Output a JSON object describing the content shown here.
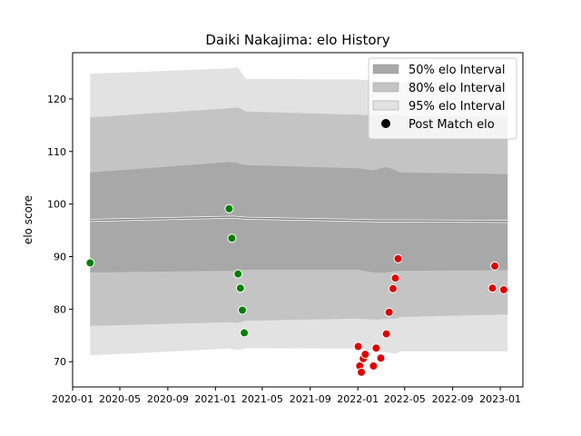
{
  "chart_data": {
    "type": "line",
    "title": "Daiki Nakajima: elo History",
    "xlabel": "",
    "ylabel": "elo score",
    "xlim": [
      "2020-01-01",
      "2023-02-28"
    ],
    "ylim": [
      65.2,
      128.8
    ],
    "x_ticks": [
      {
        "date": "2020-01-01",
        "label": "2020-01"
      },
      {
        "date": "2020-05-01",
        "label": "2020-05"
      },
      {
        "date": "2020-09-01",
        "label": "2020-09"
      },
      {
        "date": "2021-01-01",
        "label": "2021-01"
      },
      {
        "date": "2021-05-01",
        "label": "2021-05"
      },
      {
        "date": "2021-09-01",
        "label": "2021-09"
      },
      {
        "date": "2022-01-01",
        "label": "2022-01"
      },
      {
        "date": "2022-05-01",
        "label": "2022-05"
      },
      {
        "date": "2022-09-01",
        "label": "2022-09"
      },
      {
        "date": "2023-01-01",
        "label": "2023-01"
      }
    ],
    "y_ticks": [
      70,
      80,
      90,
      100,
      110,
      120
    ],
    "legend": {
      "position": "top-right",
      "entries": [
        {
          "label": "50% elo Interval",
          "kind": "band",
          "color": "#a8a8a8"
        },
        {
          "label": "80% elo Interval",
          "kind": "band",
          "color": "#c4c4c4"
        },
        {
          "label": "95% elo Interval",
          "kind": "band",
          "color": "#e2e2e2"
        },
        {
          "label": "Post Match elo",
          "kind": "marker",
          "color": "#000000"
        }
      ]
    },
    "mean_line": {
      "x": [
        "2020-02-15",
        "2021-02-05",
        "2021-02-20",
        "2021-03-20",
        "2022-01-01",
        "2022-02-20",
        "2022-04-10",
        "2022-04-20",
        "2023-01-20"
      ],
      "y": [
        96.9,
        97.5,
        97.5,
        97.3,
        96.9,
        96.8,
        96.8,
        96.8,
        96.7
      ]
    },
    "bands": [
      {
        "name": "95% elo Interval",
        "color": "#e2e2e2",
        "x": [
          "2020-02-15",
          "2021-02-05",
          "2021-02-28",
          "2021-03-20",
          "2022-01-01",
          "2022-02-20",
          "2022-04-10",
          "2022-04-20",
          "2023-01-20"
        ],
        "upper": [
          124.8,
          125.8,
          126.0,
          123.8,
          123.7,
          123.5,
          123.5,
          123.2,
          123.3
        ],
        "lower": [
          71.2,
          72.5,
          72.2,
          72.6,
          72.5,
          72.0,
          71.5,
          72.0,
          72.0
        ]
      },
      {
        "name": "80% elo Interval",
        "color": "#c4c4c4",
        "x": [
          "2020-02-15",
          "2021-02-05",
          "2021-02-28",
          "2021-03-20",
          "2022-01-01",
          "2022-02-20",
          "2022-03-20",
          "2022-04-10",
          "2022-04-20",
          "2023-01-20"
        ],
        "upper": [
          116.5,
          118.2,
          118.4,
          117.6,
          117.0,
          116.9,
          116.9,
          117.0,
          116.8,
          116.5
        ],
        "lower": [
          76.8,
          77.5,
          77.4,
          77.8,
          78.2,
          78.0,
          78.2,
          78.2,
          78.5,
          79.0
        ]
      },
      {
        "name": "50% elo Interval",
        "color": "#a8a8a8",
        "x": [
          "2020-02-15",
          "2021-02-05",
          "2021-02-20",
          "2021-03-20",
          "2022-01-01",
          "2022-02-10",
          "2022-03-10",
          "2022-03-25",
          "2022-04-20",
          "2023-01-20"
        ],
        "upper": [
          106.0,
          108.0,
          107.9,
          107.4,
          106.8,
          106.4,
          107.0,
          106.8,
          106.0,
          105.7
        ],
        "lower": [
          87.0,
          87.3,
          87.3,
          87.5,
          87.5,
          87.0,
          86.9,
          87.1,
          87.3,
          87.4
        ]
      }
    ],
    "series": [
      {
        "name": "Post Match elo",
        "color": "#008000",
        "points": [
          {
            "x": "2020-02-15",
            "y": 88.8
          },
          {
            "x": "2021-02-05",
            "y": 99.1
          },
          {
            "x": "2021-02-12",
            "y": 93.5
          },
          {
            "x": "2021-02-28",
            "y": 86.7
          },
          {
            "x": "2021-03-06",
            "y": 84.0
          },
          {
            "x": "2021-03-11",
            "y": 79.8
          },
          {
            "x": "2021-03-16",
            "y": 75.5
          }
        ]
      },
      {
        "name": "Post Match elo",
        "color": "#e00000",
        "points": [
          {
            "x": "2022-01-02",
            "y": 72.9
          },
          {
            "x": "2022-01-06",
            "y": 69.2
          },
          {
            "x": "2022-01-10",
            "y": 68.0
          },
          {
            "x": "2022-01-15",
            "y": 70.6
          },
          {
            "x": "2022-01-20",
            "y": 71.4
          },
          {
            "x": "2022-02-10",
            "y": 69.2
          },
          {
            "x": "2022-02-17",
            "y": 72.6
          },
          {
            "x": "2022-03-01",
            "y": 70.7
          },
          {
            "x": "2022-03-15",
            "y": 75.3
          },
          {
            "x": "2022-03-22",
            "y": 79.4
          },
          {
            "x": "2022-04-01",
            "y": 83.9
          },
          {
            "x": "2022-04-07",
            "y": 85.9
          },
          {
            "x": "2022-04-14",
            "y": 89.6
          },
          {
            "x": "2022-12-12",
            "y": 84.0
          },
          {
            "x": "2022-12-18",
            "y": 88.2
          },
          {
            "x": "2023-01-10",
            "y": 83.7
          }
        ]
      }
    ]
  }
}
